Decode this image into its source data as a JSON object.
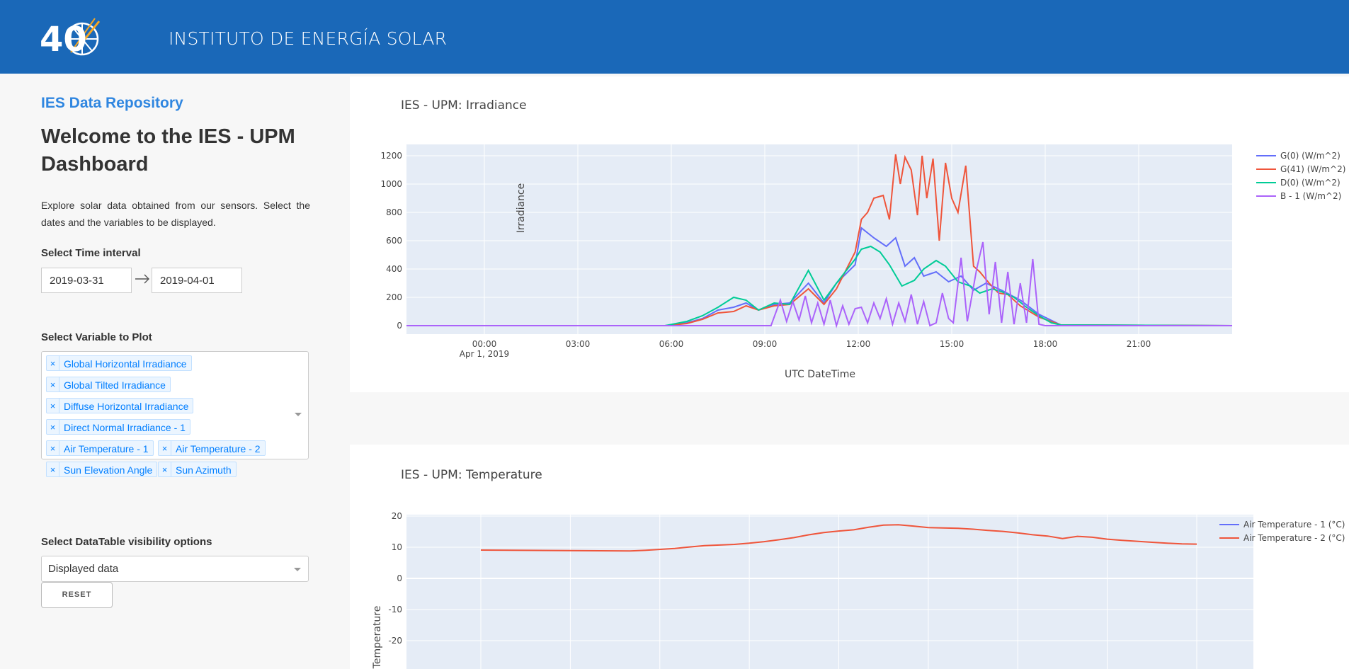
{
  "header": {
    "title": "INSTITUTO DE ENERGÍA SOLAR",
    "logo_text": "40"
  },
  "sidebar": {
    "repo_title": "IES Data Repository",
    "welcome": "Welcome to the IES - UPM Dashboard",
    "intro": "Explore solar data obtained from our sensors. Select the dates and the variables to be displayed.",
    "time_label": "Select Time interval",
    "start_date": "2019-03-31",
    "end_date": "2019-04-01",
    "variable_label": "Select Variable to Plot",
    "variables": [
      "Global Horizontal Irradiance",
      "Global Tilted Irradiance",
      "Diffuse Horizontal Irradiance",
      "Direct Normal Irradiance - 1",
      "Air Temperature - 1",
      "Air Temperature - 2",
      "Sun Elevation Angle",
      "Sun Azimuth"
    ],
    "tag_remove": "×",
    "table_label": "Select DataTable visibility options",
    "table_value": "Displayed data",
    "reset_label": "RESET"
  },
  "chart_data": [
    {
      "type": "line",
      "title": "IES - UPM: Irradiance",
      "xlabel": "UTC DateTime",
      "ylabel": "Irradiance",
      "x_tick_labels": [
        "00:00",
        "03:00",
        "06:00",
        "09:00",
        "12:00",
        "15:00",
        "18:00",
        "21:00"
      ],
      "x_tick_hours": [
        0,
        3,
        6,
        9,
        12,
        15,
        18,
        21
      ],
      "x_sub_label": "Apr 1, 2019",
      "xlim": [
        -2.5,
        24
      ],
      "ylim": [
        -60,
        1280
      ],
      "y_ticks": [
        0,
        200,
        400,
        600,
        800,
        1000,
        1200
      ],
      "grid": true,
      "legend_position": "right",
      "series": [
        {
          "name": "G(0) (W/m^2)",
          "color": "#636efa",
          "x": [
            -2.5,
            5.8,
            6.5,
            7.0,
            7.5,
            8.0,
            8.4,
            8.8,
            9.3,
            9.8,
            10.4,
            10.9,
            11.3,
            11.9,
            12.1,
            12.5,
            12.9,
            13.2,
            13.5,
            13.8,
            14.1,
            14.5,
            14.9,
            15.3,
            15.7,
            16.1,
            16.6,
            17.2,
            17.8,
            18.5,
            24
          ],
          "y": [
            0,
            0,
            20,
            50,
            110,
            130,
            160,
            110,
            150,
            160,
            300,
            160,
            300,
            430,
            690,
            620,
            560,
            620,
            420,
            480,
            350,
            380,
            310,
            350,
            250,
            300,
            250,
            180,
            80,
            5,
            0
          ]
        },
        {
          "name": "G(41) (W/m^2)",
          "color": "#ef553b",
          "x": [
            -2.5,
            5.8,
            6.5,
            7.0,
            7.5,
            8.0,
            8.4,
            8.8,
            9.3,
            9.8,
            10.4,
            10.9,
            11.3,
            11.9,
            12.1,
            12.3,
            12.5,
            12.8,
            13.0,
            13.2,
            13.35,
            13.5,
            13.7,
            13.9,
            14.05,
            14.2,
            14.4,
            14.6,
            14.8,
            15.0,
            15.2,
            15.45,
            15.7,
            15.9,
            16.2,
            16.5,
            16.8,
            17.2,
            17.8,
            18.5,
            24
          ],
          "y": [
            0,
            0,
            15,
            45,
            90,
            100,
            140,
            110,
            140,
            150,
            260,
            150,
            260,
            520,
            750,
            800,
            900,
            920,
            750,
            1210,
            1000,
            1190,
            1100,
            780,
            1200,
            900,
            1180,
            600,
            1150,
            900,
            800,
            1130,
            420,
            380,
            300,
            230,
            220,
            140,
            60,
            5,
            0
          ]
        },
        {
          "name": "D(0) (W/m^2)",
          "color": "#00cc96",
          "x": [
            -2.5,
            5.8,
            6.5,
            7.0,
            7.5,
            8.0,
            8.4,
            8.8,
            9.3,
            9.8,
            10.4,
            10.9,
            11.3,
            11.9,
            12.1,
            12.4,
            12.7,
            13.0,
            13.4,
            13.8,
            14.1,
            14.5,
            14.8,
            15.2,
            15.6,
            15.9,
            16.3,
            16.6,
            17.0,
            17.4,
            17.8,
            18.2,
            18.5,
            24
          ],
          "y": [
            0,
            0,
            30,
            70,
            130,
            200,
            180,
            110,
            160,
            150,
            390,
            180,
            300,
            470,
            540,
            560,
            520,
            430,
            280,
            320,
            400,
            460,
            420,
            310,
            280,
            230,
            260,
            240,
            200,
            130,
            70,
            20,
            5,
            0
          ]
        },
        {
          "name": "B - 1 (W/m^2)",
          "color": "#ab63fa",
          "x": [
            -2.5,
            9.2,
            9.5,
            9.7,
            9.9,
            10.1,
            10.3,
            10.5,
            10.7,
            10.9,
            11.1,
            11.3,
            11.5,
            11.7,
            11.9,
            12.1,
            12.3,
            12.5,
            12.7,
            12.9,
            13.1,
            13.3,
            13.5,
            13.7,
            13.9,
            14.1,
            14.3,
            14.5,
            14.7,
            14.9,
            15.05,
            15.3,
            15.5,
            15.8,
            16.0,
            16.2,
            16.4,
            16.6,
            16.8,
            17.0,
            17.2,
            17.4,
            17.6,
            17.8,
            18.0,
            24
          ],
          "y": [
            0,
            0,
            180,
            30,
            170,
            40,
            210,
            20,
            160,
            10,
            180,
            0,
            140,
            10,
            120,
            130,
            20,
            160,
            50,
            190,
            10,
            160,
            30,
            220,
            10,
            170,
            0,
            20,
            230,
            50,
            20,
            480,
            30,
            400,
            590,
            80,
            450,
            20,
            380,
            10,
            300,
            20,
            470,
            10,
            0,
            0
          ]
        }
      ]
    },
    {
      "type": "line",
      "title": "IES - UPM: Temperature",
      "ylabel": "Temperature",
      "ylim": [
        -27,
        21
      ],
      "y_ticks": [
        -20,
        -10,
        0,
        10,
        20
      ],
      "grid": true,
      "legend_position": "right",
      "series": [
        {
          "name": "Air Temperature - 1 (°C)",
          "color": "#636efa",
          "x": [],
          "y": []
        },
        {
          "name": "Air Temperature - 2 (°C)",
          "color": "#ef553b",
          "x": [
            0,
            3,
            5,
            5.5,
            6.5,
            7,
            7.5,
            8,
            8.5,
            9,
            9.5,
            10,
            10.5,
            11,
            11.5,
            12,
            12.5,
            13,
            13.5,
            14,
            14.5,
            15,
            15.5,
            16,
            16.5,
            17,
            17.5,
            18,
            18.5,
            19,
            19.5,
            20,
            20.5,
            21,
            21.5,
            22,
            22.5,
            23,
            23.5,
            24
          ],
          "y": [
            9.1,
            8.9,
            8.8,
            9.0,
            9.6,
            10.1,
            10.5,
            10.7,
            10.9,
            11.3,
            11.8,
            12.4,
            13.1,
            14.0,
            14.7,
            15.2,
            15.6,
            16.4,
            17.1,
            17.2,
            16.8,
            16.3,
            16.2,
            16.1,
            15.8,
            15.4,
            15.1,
            14.6,
            14.0,
            13.6,
            12.8,
            13.5,
            13.2,
            12.6,
            12.2,
            11.9,
            11.6,
            11.3,
            11.1,
            11.0
          ]
        }
      ]
    }
  ]
}
